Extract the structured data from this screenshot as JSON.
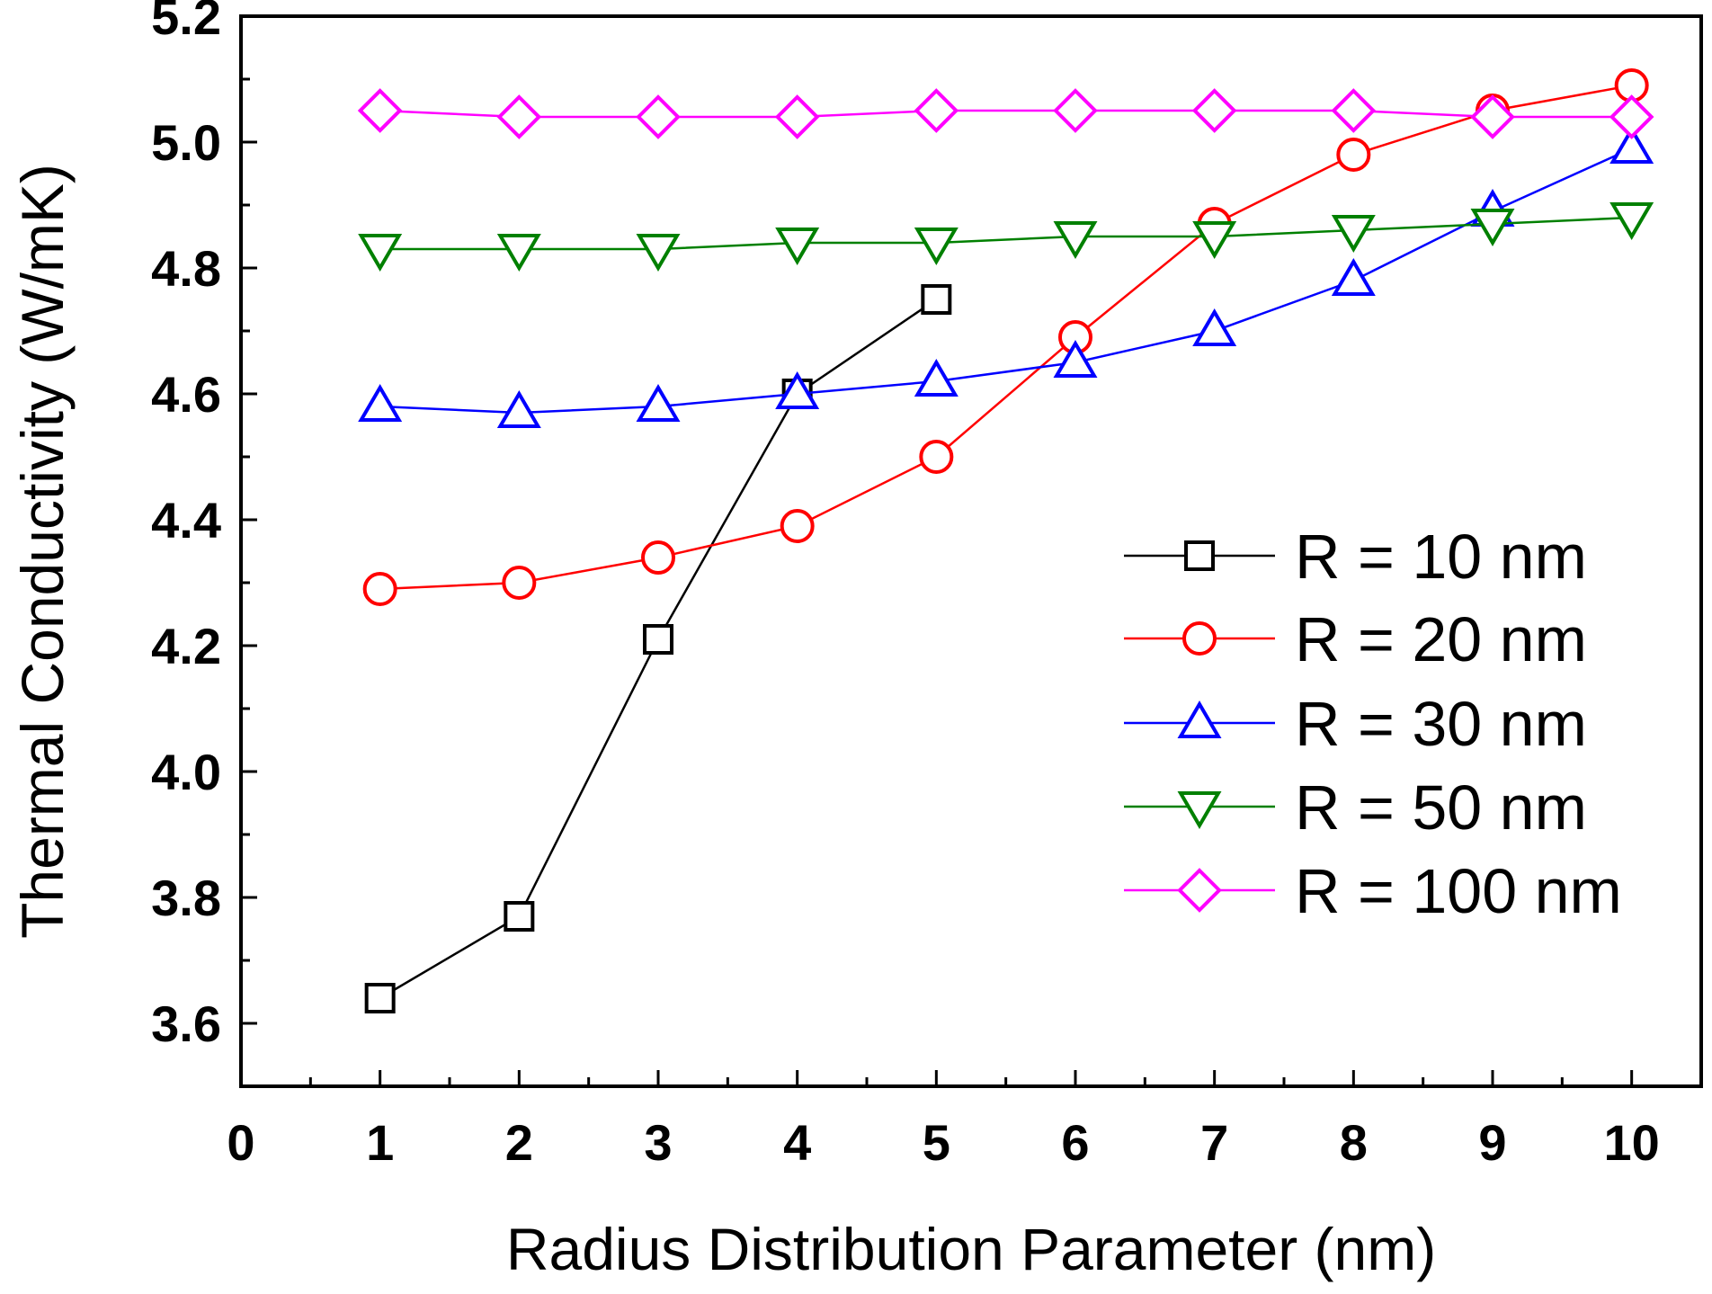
{
  "chart_data": {
    "type": "line",
    "title": "",
    "xlabel": "Radius Distribution Parameter (nm)",
    "ylabel": "Thermal Conductivity (W/mK)",
    "xlim": [
      0,
      10.5
    ],
    "ylim": [
      3.5,
      5.2
    ],
    "xticks": [
      "0",
      "1",
      "2",
      "3",
      "4",
      "5",
      "6",
      "7",
      "8",
      "9",
      "10"
    ],
    "yticks": [
      "3.6",
      "3.8",
      "4.0",
      "4.2",
      "4.4",
      "4.6",
      "4.8",
      "5.0",
      "5.2"
    ],
    "legend_position": "right",
    "series": [
      {
        "name": "R = 10 nm",
        "color": "#000000",
        "marker": "square",
        "x": [
          1,
          2,
          3,
          4,
          5
        ],
        "values": [
          3.64,
          3.77,
          4.21,
          4.6,
          4.75
        ]
      },
      {
        "name": "R = 20 nm",
        "color": "#ff0000",
        "marker": "circle",
        "x": [
          1,
          2,
          3,
          4,
          5,
          6,
          7,
          8,
          9,
          10
        ],
        "values": [
          4.29,
          4.3,
          4.34,
          4.39,
          4.5,
          4.69,
          4.87,
          4.98,
          5.05,
          5.09
        ]
      },
      {
        "name": "R = 30 nm",
        "color": "#0000ff",
        "marker": "triangle-up",
        "x": [
          1,
          2,
          3,
          4,
          5,
          6,
          7,
          8,
          9,
          10
        ],
        "values": [
          4.58,
          4.57,
          4.58,
          4.6,
          4.62,
          4.65,
          4.7,
          4.78,
          4.89,
          4.99
        ]
      },
      {
        "name": "R = 50 nm",
        "color": "#008000",
        "marker": "triangle-down",
        "x": [
          1,
          2,
          3,
          4,
          5,
          6,
          7,
          8,
          9,
          10
        ],
        "values": [
          4.83,
          4.83,
          4.83,
          4.84,
          4.84,
          4.85,
          4.85,
          4.86,
          4.87,
          4.88
        ]
      },
      {
        "name": "R = 100 nm",
        "color": "#ff00ff",
        "marker": "diamond",
        "x": [
          1,
          2,
          3,
          4,
          5,
          6,
          7,
          8,
          9,
          10
        ],
        "values": [
          5.05,
          5.04,
          5.04,
          5.04,
          5.05,
          5.05,
          5.05,
          5.05,
          5.04,
          5.04
        ]
      }
    ]
  }
}
